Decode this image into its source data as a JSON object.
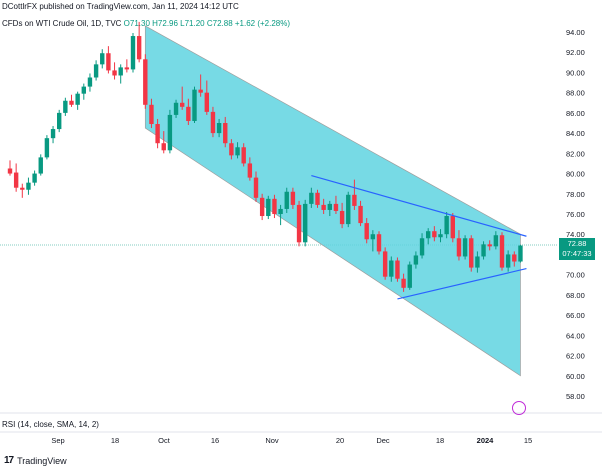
{
  "header": {
    "publisher": "DCottlrFX published on TradingView.com, Jan 11, 2024 14:12 UTC",
    "symbol_line": "CFDs on WTI Crude Oil, 1D, TVC",
    "ohlc": "O71.30 H72.96 L71.20 C72.88 +1.62 (+2.28%)"
  },
  "price_tag": {
    "price": "72.88",
    "countdown": "07:47:33"
  },
  "indicator_label": "RSI (14, close, SMA, 14, 2)",
  "branding": {
    "logo_text": "TradingView",
    "logo_mark": "17"
  },
  "colors": {
    "up": "#089981",
    "down": "#f23645",
    "channel_fill": "#5fd3e0",
    "trendline": "#2962ff"
  },
  "chart_data": {
    "type": "candlestick",
    "y_axis": {
      "min": 57,
      "max": 95,
      "ticks": [
        94,
        92,
        90,
        88,
        86,
        84,
        82,
        80,
        78,
        76,
        74,
        72,
        70,
        68,
        66,
        64,
        62,
        60,
        58
      ],
      "tick_labels": [
        "94.00",
        "92.00",
        "90.00",
        "88.00",
        "86.00",
        "84.00",
        "82.00",
        "80.00",
        "78.00",
        "76.00",
        "74.00",
        "72.00",
        "70.00",
        "68.00",
        "66.00",
        "64.00",
        "62.00",
        "60.00",
        "58.00"
      ]
    },
    "x_axis": {
      "labels": [
        "Sep",
        "18",
        "Oct",
        "16",
        "Nov",
        "20",
        "Dec",
        "18",
        "2024",
        "15"
      ]
    },
    "last_price": 72.88,
    "candles": [
      {
        "o": 80.5,
        "h": 81.3,
        "l": 79.8,
        "c": 80.0
      },
      {
        "o": 80.1,
        "h": 81.0,
        "l": 78.2,
        "c": 78.6
      },
      {
        "o": 78.6,
        "h": 79.0,
        "l": 77.6,
        "c": 78.4
      },
      {
        "o": 78.4,
        "h": 79.6,
        "l": 77.9,
        "c": 79.1
      },
      {
        "o": 79.1,
        "h": 80.3,
        "l": 78.8,
        "c": 80.0
      },
      {
        "o": 80.0,
        "h": 81.9,
        "l": 79.8,
        "c": 81.6
      },
      {
        "o": 81.6,
        "h": 83.8,
        "l": 81.4,
        "c": 83.5
      },
      {
        "o": 83.5,
        "h": 84.7,
        "l": 83.0,
        "c": 84.4
      },
      {
        "o": 84.4,
        "h": 86.3,
        "l": 84.1,
        "c": 86.0
      },
      {
        "o": 86.0,
        "h": 87.5,
        "l": 85.7,
        "c": 87.2
      },
      {
        "o": 87.2,
        "h": 87.8,
        "l": 86.6,
        "c": 86.8
      },
      {
        "o": 86.8,
        "h": 88.1,
        "l": 86.3,
        "c": 87.9
      },
      {
        "o": 87.9,
        "h": 88.9,
        "l": 87.3,
        "c": 88.6
      },
      {
        "o": 88.6,
        "h": 89.9,
        "l": 88.1,
        "c": 89.5
      },
      {
        "o": 89.5,
        "h": 91.2,
        "l": 89.2,
        "c": 90.8
      },
      {
        "o": 90.8,
        "h": 92.3,
        "l": 90.4,
        "c": 91.9
      },
      {
        "o": 91.9,
        "h": 92.6,
        "l": 89.9,
        "c": 90.2
      },
      {
        "o": 90.2,
        "h": 91.0,
        "l": 89.3,
        "c": 89.7
      },
      {
        "o": 89.7,
        "h": 90.8,
        "l": 88.9,
        "c": 90.5
      },
      {
        "o": 90.5,
        "h": 91.3,
        "l": 90.0,
        "c": 90.3
      },
      {
        "o": 90.3,
        "h": 93.9,
        "l": 90.0,
        "c": 93.6
      },
      {
        "o": 93.6,
        "h": 95.0,
        "l": 91.0,
        "c": 91.3
      },
      {
        "o": 91.3,
        "h": 91.8,
        "l": 86.4,
        "c": 86.8
      },
      {
        "o": 86.8,
        "h": 87.4,
        "l": 84.5,
        "c": 84.9
      },
      {
        "o": 84.9,
        "h": 85.4,
        "l": 82.5,
        "c": 83.0
      },
      {
        "o": 83.0,
        "h": 84.2,
        "l": 82.0,
        "c": 82.3
      },
      {
        "o": 82.3,
        "h": 86.3,
        "l": 82.0,
        "c": 85.8
      },
      {
        "o": 85.8,
        "h": 87.3,
        "l": 85.5,
        "c": 87.0
      },
      {
        "o": 87.0,
        "h": 88.6,
        "l": 86.3,
        "c": 86.6
      },
      {
        "o": 86.6,
        "h": 87.4,
        "l": 84.8,
        "c": 85.2
      },
      {
        "o": 85.2,
        "h": 88.6,
        "l": 85.0,
        "c": 88.3
      },
      {
        "o": 88.3,
        "h": 89.8,
        "l": 87.6,
        "c": 88.0
      },
      {
        "o": 88.0,
        "h": 89.2,
        "l": 85.8,
        "c": 86.1
      },
      {
        "o": 86.1,
        "h": 86.6,
        "l": 83.6,
        "c": 84.0
      },
      {
        "o": 84.0,
        "h": 85.4,
        "l": 83.6,
        "c": 85.0
      },
      {
        "o": 85.0,
        "h": 85.6,
        "l": 82.6,
        "c": 83.0
      },
      {
        "o": 83.0,
        "h": 83.4,
        "l": 81.4,
        "c": 81.8
      },
      {
        "o": 81.8,
        "h": 83.1,
        "l": 81.5,
        "c": 82.6
      },
      {
        "o": 82.6,
        "h": 83.0,
        "l": 80.7,
        "c": 81.0
      },
      {
        "o": 81.0,
        "h": 81.6,
        "l": 79.3,
        "c": 79.6
      },
      {
        "o": 79.6,
        "h": 80.2,
        "l": 77.2,
        "c": 77.6
      },
      {
        "o": 77.6,
        "h": 78.0,
        "l": 75.4,
        "c": 75.8
      },
      {
        "o": 75.8,
        "h": 77.8,
        "l": 75.5,
        "c": 77.5
      },
      {
        "o": 77.5,
        "h": 77.9,
        "l": 75.6,
        "c": 76.0
      },
      {
        "o": 76.0,
        "h": 76.9,
        "l": 74.9,
        "c": 76.5
      },
      {
        "o": 76.5,
        "h": 78.6,
        "l": 76.1,
        "c": 78.2
      },
      {
        "o": 78.2,
        "h": 78.6,
        "l": 76.5,
        "c": 76.9
      },
      {
        "o": 76.9,
        "h": 77.3,
        "l": 72.8,
        "c": 73.2
      },
      {
        "o": 73.2,
        "h": 77.4,
        "l": 72.8,
        "c": 77.0
      },
      {
        "o": 77.0,
        "h": 78.6,
        "l": 76.6,
        "c": 78.1
      },
      {
        "o": 78.1,
        "h": 78.4,
        "l": 76.6,
        "c": 76.9
      },
      {
        "o": 76.9,
        "h": 77.5,
        "l": 76.0,
        "c": 76.4
      },
      {
        "o": 76.4,
        "h": 77.3,
        "l": 75.8,
        "c": 77.0
      },
      {
        "o": 77.0,
        "h": 77.8,
        "l": 76.0,
        "c": 76.3
      },
      {
        "o": 76.3,
        "h": 77.1,
        "l": 74.6,
        "c": 75.0
      },
      {
        "o": 75.0,
        "h": 78.2,
        "l": 74.7,
        "c": 77.9
      },
      {
        "o": 77.9,
        "h": 79.4,
        "l": 76.4,
        "c": 76.8
      },
      {
        "o": 76.8,
        "h": 77.3,
        "l": 74.8,
        "c": 75.1
      },
      {
        "o": 75.1,
        "h": 75.6,
        "l": 73.1,
        "c": 73.5
      },
      {
        "o": 73.5,
        "h": 74.4,
        "l": 72.3,
        "c": 74.0
      },
      {
        "o": 74.0,
        "h": 74.3,
        "l": 72.0,
        "c": 72.3
      },
      {
        "o": 72.3,
        "h": 72.7,
        "l": 69.5,
        "c": 69.8
      },
      {
        "o": 69.8,
        "h": 71.8,
        "l": 69.3,
        "c": 71.4
      },
      {
        "o": 71.4,
        "h": 71.7,
        "l": 69.3,
        "c": 69.6
      },
      {
        "o": 69.6,
        "h": 70.1,
        "l": 68.3,
        "c": 68.7
      },
      {
        "o": 68.7,
        "h": 71.3,
        "l": 68.5,
        "c": 71.0
      },
      {
        "o": 71.0,
        "h": 72.3,
        "l": 70.6,
        "c": 71.9
      },
      {
        "o": 71.9,
        "h": 74.1,
        "l": 71.6,
        "c": 73.6
      },
      {
        "o": 73.6,
        "h": 74.6,
        "l": 73.0,
        "c": 74.3
      },
      {
        "o": 74.3,
        "h": 74.8,
        "l": 73.3,
        "c": 73.7
      },
      {
        "o": 73.7,
        "h": 74.5,
        "l": 73.2,
        "c": 74.0
      },
      {
        "o": 74.0,
        "h": 76.2,
        "l": 73.6,
        "c": 75.8
      },
      {
        "o": 75.8,
        "h": 76.1,
        "l": 73.2,
        "c": 73.6
      },
      {
        "o": 73.6,
        "h": 74.4,
        "l": 71.4,
        "c": 71.8
      },
      {
        "o": 71.8,
        "h": 73.9,
        "l": 71.5,
        "c": 73.6
      },
      {
        "o": 73.6,
        "h": 73.9,
        "l": 70.3,
        "c": 70.7
      },
      {
        "o": 70.7,
        "h": 72.3,
        "l": 70.2,
        "c": 71.8
      },
      {
        "o": 71.8,
        "h": 73.3,
        "l": 71.5,
        "c": 73.0
      },
      {
        "o": 73.0,
        "h": 73.4,
        "l": 72.4,
        "c": 72.8
      },
      {
        "o": 72.8,
        "h": 74.3,
        "l": 72.5,
        "c": 73.9
      },
      {
        "o": 73.9,
        "h": 74.2,
        "l": 70.4,
        "c": 70.7
      },
      {
        "o": 70.7,
        "h": 72.4,
        "l": 70.3,
        "c": 72.0
      },
      {
        "o": 72.0,
        "h": 72.3,
        "l": 70.8,
        "c": 71.3
      },
      {
        "o": 71.3,
        "h": 72.96,
        "l": 71.2,
        "c": 72.88
      }
    ],
    "channel": {
      "upper": [
        [
          22,
          94.6
        ],
        [
          83,
          74.0
        ]
      ],
      "lower": [
        [
          22,
          84.5
        ],
        [
          83,
          60.0
        ]
      ]
    },
    "trendlines": [
      {
        "name": "descending",
        "points": [
          [
            49,
            79.8
          ],
          [
            83,
            73.8
          ]
        ]
      },
      {
        "name": "ascending",
        "points": [
          [
            63,
            67.6
          ],
          [
            83,
            70.6
          ]
        ]
      }
    ]
  }
}
